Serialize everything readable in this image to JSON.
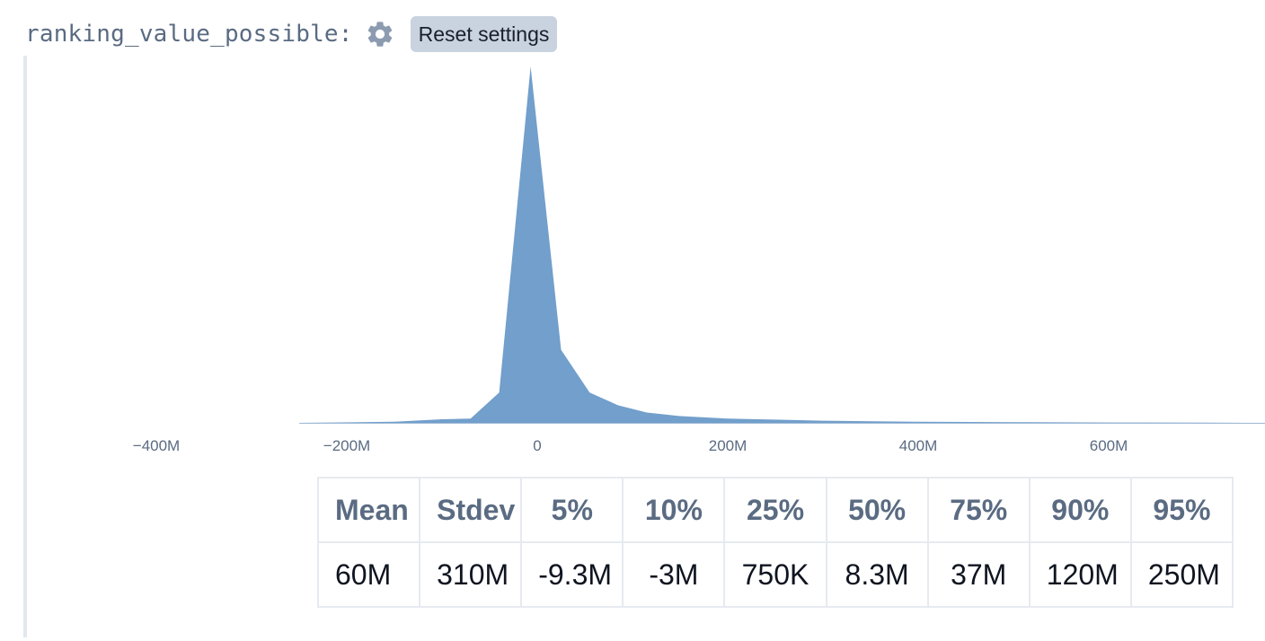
{
  "header": {
    "variable_name": "ranking_value_possible:",
    "reset_label": "Reset settings",
    "gear_icon": "gear-icon"
  },
  "colors": {
    "area_fill": "#729fcb",
    "axis_text": "#5a6b82",
    "button_bg": "#c8d3df"
  },
  "chart_data": {
    "type": "area",
    "xlim": [
      -500000000,
      750000000
    ],
    "ylim": [
      0,
      1
    ],
    "x_ticks": [
      {
        "value": -400000000,
        "label": "−400M"
      },
      {
        "value": -200000000,
        "label": "−200M"
      },
      {
        "value": 0,
        "label": "0"
      },
      {
        "value": 200000000,
        "label": "200M"
      },
      {
        "value": 400000000,
        "label": "400M"
      },
      {
        "value": 600000000,
        "label": "600M"
      }
    ],
    "x": [
      -250000000,
      -150000000,
      -100000000,
      -70000000,
      -40000000,
      -7000000,
      25000000,
      55000000,
      85000000,
      115000000,
      150000000,
      200000000,
      300000000,
      400000000,
      500000000,
      600000000,
      700000000,
      750000000
    ],
    "y": [
      0.0,
      0.003,
      0.01,
      0.012,
      0.085,
      1.0,
      0.205,
      0.085,
      0.049,
      0.029,
      0.019,
      0.012,
      0.006,
      0.003,
      0.002,
      0.001,
      0.0005,
      0.0
    ],
    "grid": false,
    "legend": "none"
  },
  "stats": {
    "headers": [
      "Mean",
      "Stdev",
      "5%",
      "10%",
      "25%",
      "50%",
      "75%",
      "90%",
      "95%"
    ],
    "values": [
      "60M",
      "310M",
      "-9.3M",
      "-3M",
      "750K",
      "8.3M",
      "37M",
      "120M",
      "250M"
    ]
  }
}
